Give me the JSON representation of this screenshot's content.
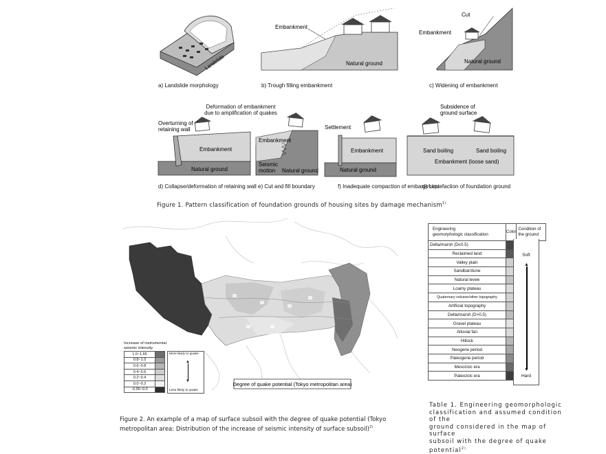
{
  "figure1": {
    "caption": "Figure 1. Pattern classification of foundation grounds of housing sites by damage mechanism",
    "caption_ref": "1)",
    "panels": {
      "a": {
        "label": "a) Landslide morphology",
        "text_landslide": "Landslide"
      },
      "b": {
        "label": "b) Trough filling embankment",
        "text_embankment": "Embankment",
        "text_ground": "Natural ground"
      },
      "c": {
        "label": "c) Widening of embankment",
        "text_cut": "Cut",
        "text_embankment": "Embankment",
        "text_ground": "Natural ground"
      },
      "d": {
        "label": "d) Collapse/deformation of retaining wall",
        "text_overturn1": "Overturning of",
        "text_overturn2": "retaining wall",
        "text_embankment": "Embankment",
        "text_ground": "Natural ground"
      },
      "e": {
        "label": "e) Cut and fill boundary",
        "text_deform1": "Deformation of embankment",
        "text_deform2": "due to amplification of quakes",
        "text_embankment": "Embankment",
        "text_seismic1": "Seismic",
        "text_seismic2": "motion",
        "text_ground": "Natural ground"
      },
      "f": {
        "label": "f) Inadequate compaction of embankment",
        "text_settlement": "Settlement",
        "text_embankment": "Embankment",
        "text_ground": "Natural ground"
      },
      "g": {
        "label": "g) Liquefaction of foundation ground",
        "text_subs1": "Subsidence of",
        "text_subs2": "ground surface",
        "text_sand1": "Sand boiling",
        "text_sand2": "Sand boiling",
        "text_embankment": "Embankment (loose sand)"
      }
    }
  },
  "figure2": {
    "caption_line1": "Figure 2. An example of a map of surface subsoil with the degree of quake potential (Tokyo",
    "caption_line2": "metropolitan area: Distribution of the increase of seismic intensity of surface subsoil)",
    "caption_ref": "2)",
    "map_label": "Degree of quake potential (Tokyo metropolitan area)",
    "legend": {
      "title1": "Increase of instrumental",
      "title2": "seismic intensity",
      "rows": [
        "1.0~1.65",
        "0.8~1.0",
        "0.6~0.8",
        "0.4~0.6",
        "0.2~0.4",
        "0.0~0.2",
        "-0.95~0.0"
      ],
      "shades": [
        "#6e6e6e",
        "#9a9a9a",
        "#b5b5b5",
        "#cdcdcd",
        "#dedede",
        "#f2f2f2",
        "#2e2e2e"
      ],
      "more_label": "More likely to quake",
      "less_label": "Less likely to quake"
    }
  },
  "table1": {
    "header_classification1": "Engineering",
    "header_classification2": "geomorphologic classification",
    "header_color": "Color",
    "header_condition1": "Condition of",
    "header_condition2": "the ground",
    "rows": [
      {
        "name": "Delta/marsh (D≤0.5)",
        "shade": "#474747"
      },
      {
        "name": "Reclaimed land",
        "shade": "#5a5a5a"
      },
      {
        "name": "Valley plain",
        "shade": "#cfcfcf"
      },
      {
        "name": "Sandbar/dune",
        "shade": "#d7d7d7"
      },
      {
        "name": "Natural levee",
        "shade": "#c4c4c4"
      },
      {
        "name": "Loamy plateau",
        "shade": "#dcdcdc"
      },
      {
        "name": "Quaternary volcano/other topography",
        "shade": "#d2d2d2"
      },
      {
        "name": "Artificial topography",
        "shade": "#c9c9c9"
      },
      {
        "name": "Delta/marsh (D>0.5)",
        "shade": "#bdbdbd"
      },
      {
        "name": "Gravel plateau",
        "shade": "#e3e3e3"
      },
      {
        "name": "Alluvial fan",
        "shade": "#d9d9d9"
      },
      {
        "name": "Hillock",
        "shade": "#b9b9b9"
      },
      {
        "name": "Neogene period",
        "shade": "#a8a8a8"
      },
      {
        "name": "Paleogene period",
        "shade": "#8c8c8c"
      },
      {
        "name": "Mesozoic era",
        "shade": "#6a6a6a"
      },
      {
        "name": "Paleozoic era",
        "shade": "#3e3e3e"
      }
    ],
    "soft_label": "Soft",
    "hard_label": "Hard",
    "caption_line1": "Table 1. Engineering geomorphologic",
    "caption_line2": "classification and assumed condition of the",
    "caption_line3": "ground considered in the map of surface",
    "caption_line4": "subsoil with the degree of quake potential",
    "caption_ref": "2)"
  }
}
